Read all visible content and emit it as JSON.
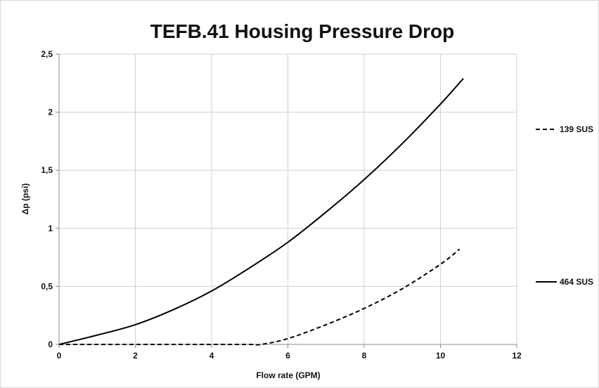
{
  "chart_data": {
    "type": "line",
    "title": "TEFB.41 Housing Pressure Drop",
    "xlabel": "Flow rate (GPM)",
    "ylabel": "Δp (psi)",
    "xlim": [
      0,
      12
    ],
    "ylim": [
      0,
      2.5
    ],
    "x_ticks": [
      "0",
      "2",
      "4",
      "6",
      "8",
      "10",
      "12"
    ],
    "y_ticks": [
      "0",
      "0,5",
      "1",
      "1,5",
      "2",
      "2,5"
    ],
    "grid": true,
    "legend_position": "right",
    "series": [
      {
        "name": "139 SUS",
        "style": "dashed",
        "color": "#000000",
        "x": [
          0,
          1,
          2,
          3,
          4,
          5,
          5.3,
          6,
          7,
          8,
          9,
          10,
          10.5
        ],
        "y": [
          0,
          0,
          0,
          0,
          0,
          0,
          0,
          0.05,
          0.17,
          0.31,
          0.48,
          0.69,
          0.82
        ]
      },
      {
        "name": "464 SUS",
        "style": "solid",
        "color": "#000000",
        "x": [
          0,
          1,
          2,
          3,
          4,
          5,
          6,
          7,
          8,
          9,
          10,
          10.6
        ],
        "y": [
          0,
          0.08,
          0.17,
          0.3,
          0.46,
          0.66,
          0.88,
          1.14,
          1.42,
          1.73,
          2.07,
          2.29
        ]
      }
    ]
  }
}
